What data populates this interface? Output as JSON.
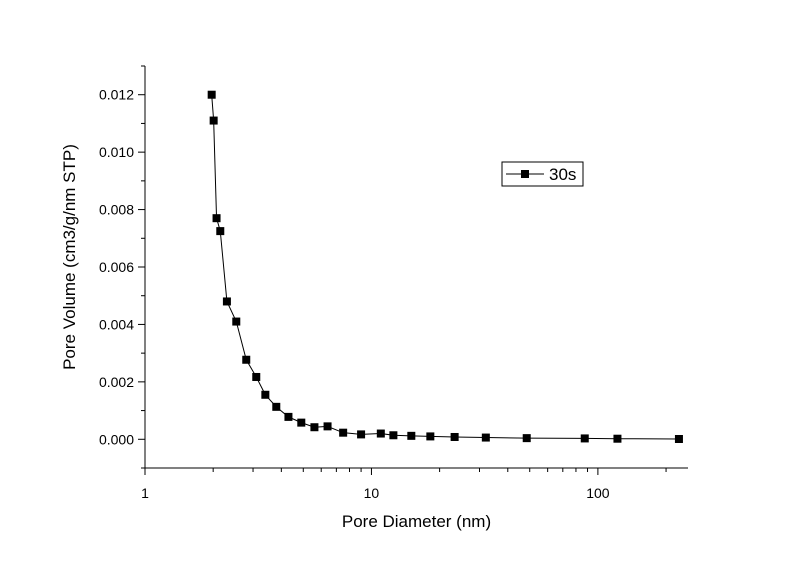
{
  "chart_data": {
    "type": "scatter",
    "title": "",
    "xlabel": "Pore Diameter (nm)",
    "ylabel": "Pore Volume (cm3/g/nm STP)",
    "xscale": "log",
    "xlim": [
      1,
      250
    ],
    "ylim": [
      -0.001,
      0.013
    ],
    "x_ticks": [
      {
        "value": 1,
        "label": "1"
      },
      {
        "value": 10,
        "label": "10"
      },
      {
        "value": 100,
        "label": "100"
      }
    ],
    "y_ticks": [
      {
        "value": 0.0,
        "label": "0.000"
      },
      {
        "value": 0.002,
        "label": "0.002"
      },
      {
        "value": 0.004,
        "label": "0.004"
      },
      {
        "value": 0.006,
        "label": "0.006"
      },
      {
        "value": 0.008,
        "label": "0.008"
      },
      {
        "value": 0.01,
        "label": "0.010"
      },
      {
        "value": 0.012,
        "label": "0.012"
      }
    ],
    "grid": false,
    "legend": {
      "position": "top-right"
    },
    "series": [
      {
        "name": "30s",
        "marker": "square",
        "line": true,
        "color": "#000000",
        "x": [
          1.97,
          2.01,
          2.07,
          2.15,
          2.3,
          2.53,
          2.8,
          3.1,
          3.4,
          3.8,
          4.3,
          4.9,
          5.6,
          6.4,
          7.5,
          9.0,
          11.0,
          12.5,
          15.0,
          18.2,
          23.3,
          32.0,
          48.5,
          87.5,
          122.0,
          228.0
        ],
        "y": [
          0.012,
          0.0111,
          0.0077,
          0.00725,
          0.0048,
          0.0041,
          0.00277,
          0.00217,
          0.00155,
          0.00113,
          0.00078,
          0.00058,
          0.00042,
          0.00045,
          0.00023,
          0.00017,
          0.0002,
          0.00014,
          0.00012,
          0.0001,
          8e-05,
          6e-05,
          4e-05,
          3e-05,
          2e-05,
          1e-05
        ]
      }
    ]
  }
}
